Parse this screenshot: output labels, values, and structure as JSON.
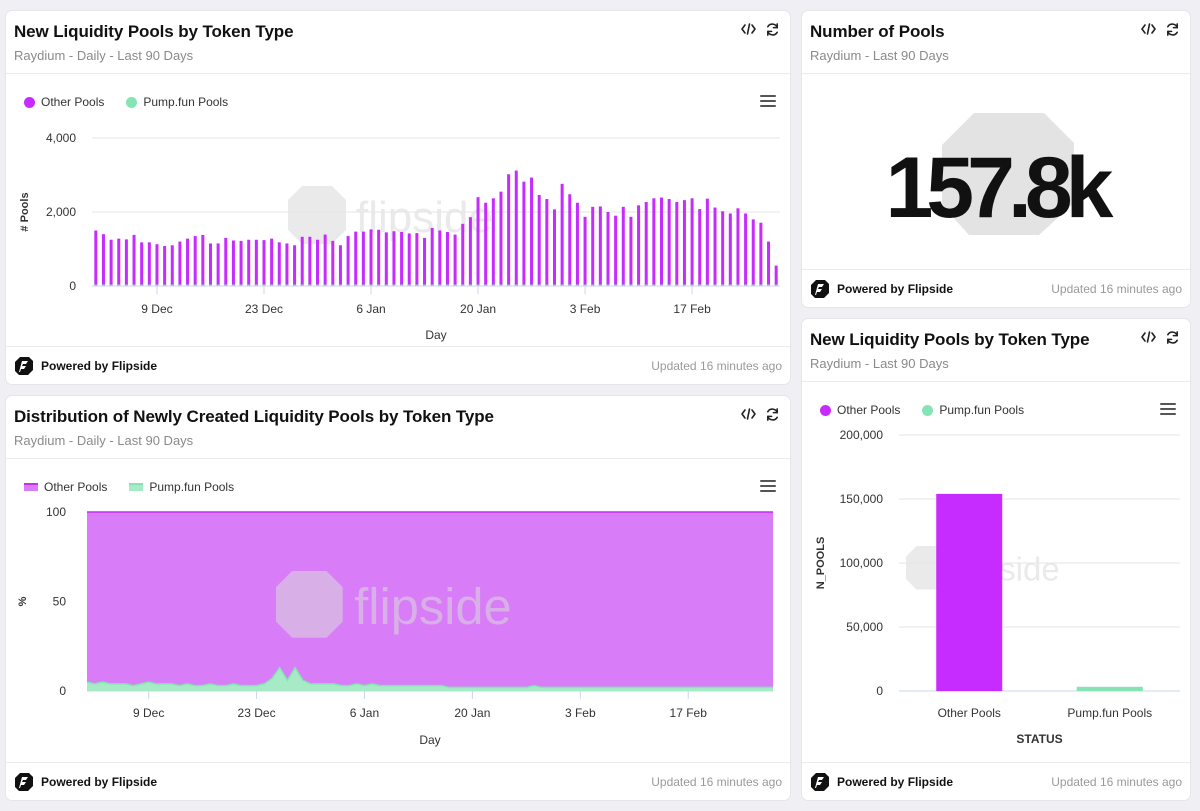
{
  "cards": {
    "bars": {
      "title": "New Liquidity Pools by Token Type",
      "subtitle": "Raydium - Daily - Last 90 Days",
      "footer": "Powered by Flipside",
      "updated": "Updated 16 minutes ago"
    },
    "number": {
      "title": "Number of Pools",
      "subtitle": "Raydium - Last 90 Days",
      "value": "157.8k",
      "footer": "Powered by Flipside",
      "updated": "Updated 16 minutes ago"
    },
    "dist": {
      "title": "Distribution of Newly Created Liquidity Pools by Token Type",
      "subtitle": "Raydium - Daily - Last 90 Days",
      "footer": "Powered by Flipside",
      "updated": "Updated 16 minutes ago"
    },
    "status": {
      "title": "New Liquidity Pools by Token Type",
      "subtitle": "Raydium - Last 90 Days",
      "footer": "Powered by Flipside",
      "updated": "Updated 16 minutes ago"
    }
  },
  "watermark_text": "flipside",
  "colors": {
    "other": "#c62bff",
    "pump": "#86e3b4",
    "area_other": "#d87cf7",
    "area_pump": "#a6ebc6"
  },
  "chart_data": [
    {
      "id": "daily_bars",
      "type": "bar",
      "xlabel": "Day",
      "ylabel": "# Pools",
      "ylim": [
        0,
        4000
      ],
      "yticks": [
        "0",
        "2,000",
        "4,000"
      ],
      "xtick_labels": [
        "9 Dec",
        "23 Dec",
        "6 Jan",
        "20 Jan",
        "3 Feb",
        "17 Feb"
      ],
      "xtick_index": [
        8,
        22,
        36,
        50,
        64,
        78
      ],
      "legend": "top-left",
      "series": [
        {
          "name": "Other Pools",
          "values": [
            1500,
            1400,
            1250,
            1280,
            1260,
            1380,
            1180,
            1180,
            1130,
            1080,
            1100,
            1200,
            1280,
            1350,
            1380,
            1150,
            1150,
            1300,
            1230,
            1220,
            1250,
            1250,
            1240,
            1280,
            1180,
            1150,
            1100,
            1330,
            1330,
            1250,
            1390,
            1220,
            1100,
            1350,
            1470,
            1470,
            1530,
            1520,
            1450,
            1480,
            1460,
            1420,
            1430,
            1300,
            1570,
            1500,
            1460,
            1390,
            1680,
            1860,
            2400,
            2250,
            2370,
            2550,
            3020,
            3120,
            2820,
            2930,
            2460,
            2350,
            2070,
            2760,
            2480,
            2250,
            1870,
            2140,
            2150,
            2000,
            1900,
            2140,
            1870,
            2180,
            2270,
            2370,
            2390,
            2350,
            2270,
            2320,
            2370,
            2080,
            2360,
            2120,
            2020,
            1960,
            2100,
            1960,
            1800,
            1710,
            1200,
            550
          ]
        },
        {
          "name": "Pump.fun Pools",
          "values": [
            40,
            40,
            40,
            40,
            40,
            40,
            40,
            40,
            40,
            40,
            40,
            40,
            40,
            40,
            40,
            40,
            40,
            40,
            40,
            40,
            40,
            40,
            40,
            40,
            40,
            40,
            40,
            40,
            40,
            40,
            40,
            40,
            40,
            40,
            40,
            40,
            40,
            40,
            40,
            40,
            40,
            40,
            40,
            40,
            40,
            40,
            40,
            40,
            40,
            40,
            40,
            40,
            40,
            40,
            40,
            40,
            40,
            40,
            40,
            40,
            40,
            40,
            40,
            40,
            40,
            40,
            40,
            40,
            40,
            40,
            40,
            40,
            40,
            40,
            40,
            40,
            40,
            40,
            40,
            40,
            40,
            40,
            40,
            40,
            40,
            40,
            40,
            40,
            40,
            40
          ]
        }
      ]
    },
    {
      "id": "distribution",
      "type": "area",
      "xlabel": "Day",
      "ylabel": "%",
      "ylim": [
        0,
        100
      ],
      "yticks": [
        "0",
        "50",
        "100"
      ],
      "xtick_labels": [
        "9 Dec",
        "23 Dec",
        "6 Jan",
        "20 Jan",
        "3 Feb",
        "17 Feb"
      ],
      "xtick_index": [
        8,
        22,
        36,
        50,
        64,
        78
      ],
      "legend": "top-left",
      "series": [
        {
          "name": "Other Pools",
          "values": "100 minus Pump.fun Pools"
        },
        {
          "name": "Pump.fun Pools",
          "values": [
            5,
            4,
            5,
            4,
            4,
            4,
            3,
            4,
            5,
            4,
            4,
            4,
            3,
            4,
            3,
            3,
            4,
            3,
            3,
            4,
            3,
            3,
            3,
            4,
            7,
            13,
            6,
            13,
            6,
            4,
            4,
            4,
            4,
            3,
            3,
            4,
            3,
            4,
            3,
            3,
            3,
            3,
            3,
            3,
            3,
            3,
            3,
            2,
            2,
            2,
            2,
            2,
            2,
            2,
            2,
            2,
            2,
            2,
            3,
            2,
            2,
            2,
            2,
            2,
            2,
            2,
            2,
            2,
            2,
            2,
            2,
            2,
            2,
            2,
            2,
            2,
            2,
            2,
            2,
            2,
            2,
            2,
            2,
            2,
            2,
            2,
            2,
            2,
            2,
            2
          ]
        }
      ]
    },
    {
      "id": "status_totals",
      "type": "bar",
      "xlabel": "STATUS",
      "ylabel": "N_POOLS",
      "ylim": [
        0,
        200000
      ],
      "yticks": [
        "0",
        "50,000",
        "100,000",
        "150,000",
        "200,000"
      ],
      "categories": [
        "Other Pools",
        "Pump.fun Pools"
      ],
      "values": [
        154000,
        3300
      ],
      "legend": "top-left",
      "series": [
        {
          "name": "Other Pools"
        },
        {
          "name": "Pump.fun Pools"
        }
      ]
    }
  ]
}
